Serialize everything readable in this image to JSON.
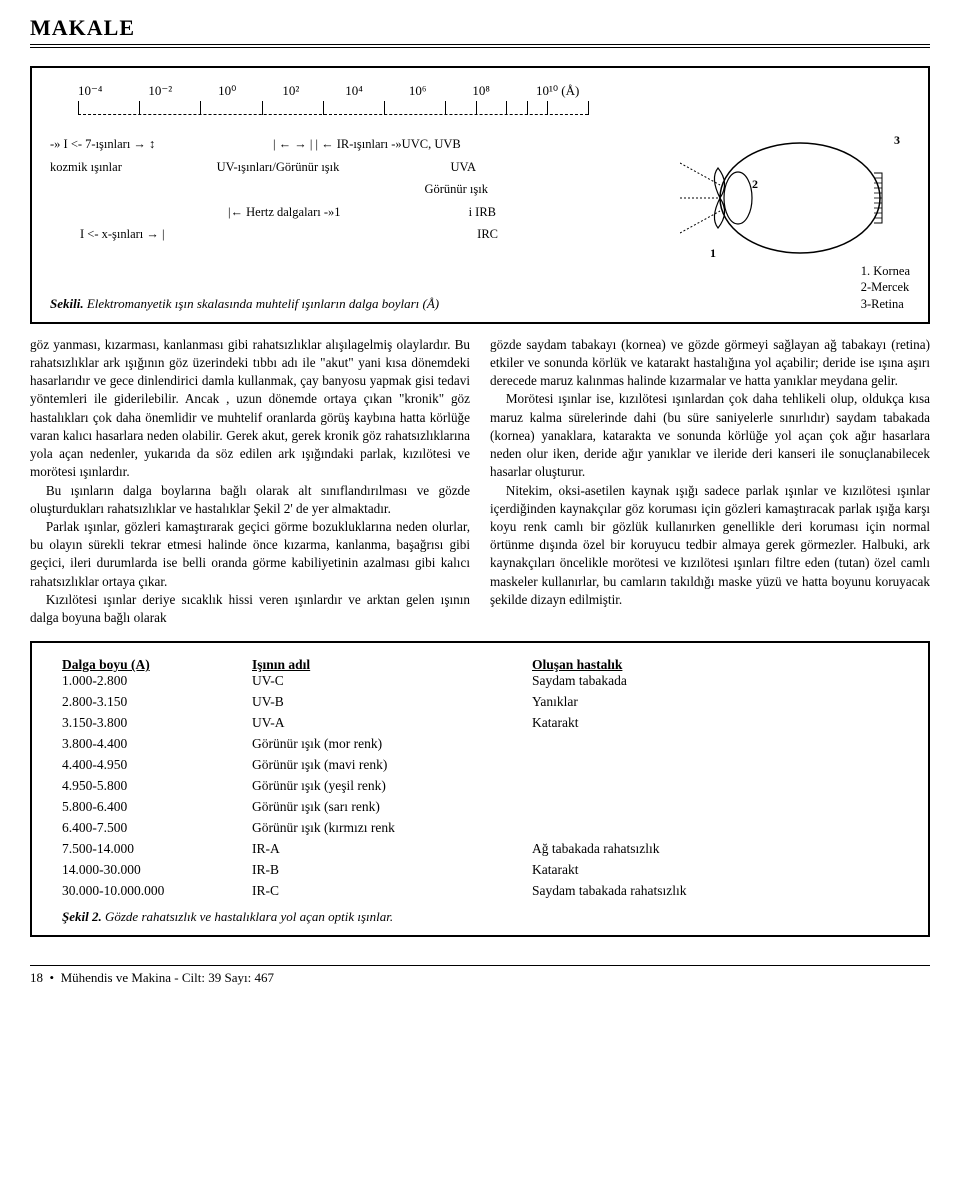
{
  "header": {
    "title": "MAKALE"
  },
  "figure1": {
    "scale_values": [
      "10⁻⁴",
      "10⁻²",
      "10⁰",
      "10²",
      "10⁴",
      "10⁶",
      "10⁸",
      "10¹⁰ (Å)"
    ],
    "tick_positions_pct": [
      0,
      12,
      24,
      36,
      48,
      60,
      72,
      78,
      84,
      88,
      92,
      100
    ],
    "labels": {
      "gamma": "-» I <- 7-ışınları   → ↕",
      "cosmic": "kozmik ışınlar",
      "x_rays": "I <-   x-şınları   → |",
      "uv_vis": "UV-ışınları/Görünür ışık",
      "hertz": "|←  Hertz dalgaları  -»1",
      "ir": "| ←   → |  | ←  IR-ışınları   -»UVC, UVB",
      "uva": "UVA",
      "gorunur": "Görünür ışık",
      "irb": "i   IRB",
      "irc": "IRC"
    },
    "eye_numbers": {
      "n1": "1",
      "n2": "2",
      "n3": "3"
    },
    "eye_legend": {
      "l1": "1. Kornea",
      "l2": "2-Mercek",
      "l3": "3-Retina"
    },
    "caption_label": "Sekili.",
    "caption_text": "Elektromanyetik ışın skalasında muhtelif ışınların dalga boyları (Å)"
  },
  "body": {
    "p1": "göz yanması, kızarması, kanlanması gibi rahatsızlıklar alışılagelmiş olaylardır. Bu rahatsızlıklar ark ışığının göz üzerindeki tıbbı adı ile \"akut\" yani kısa dönemdeki hasarlarıdır ve gece dinlendirici damla kullanmak, çay banyosu yapmak gisi tedavi yöntemleri ile giderilebilir. Ancak , uzun dönemde ortaya çıkan \"kronik\" göz hastalıkları çok daha önemlidir ve muhtelif oranlarda görüş kaybına hatta körlüğe varan kalıcı hasarlara neden olabilir. Gerek akut, gerek kronik göz rahatsızlıklarına yola açan nedenler, yukarıda da söz edilen ark ışığındaki parlak, kızılötesi ve morötesi ışınlardır.",
    "p2": "Bu ışınların dalga boylarına bağlı olarak alt sınıflandırılması ve gözde oluşturdukları rahatsızlıklar ve hastalıklar Şekil 2' de yer almaktadır.",
    "p3": "Parlak ışınlar, gözleri kamaştırarak geçici görme bozukluklarına neden olurlar, bu olayın sürekli tekrar etmesi halinde önce kızarma, kanlanma, başağrısı gibi geçici, ileri durumlarda ise belli oranda görme kabiliyetinin azalması gibi kalıcı rahatsızlıklar ortaya çıkar.",
    "p4": "Kızılötesi ışınlar deriye sıcaklık hissi veren ışınlardır ve arktan gelen ışının dalga boyuna bağlı olarak",
    "p5": "gözde saydam tabakayı (kornea) ve gözde görmeyi sağlayan ağ tabakayı (retina) etkiler ve sonunda körlük ve katarakt hastalığına yol açabilir; deride ise ışına aşırı derecede maruz kalınmas halinde kızarmalar ve hatta yanıklar meydana gelir.",
    "p6": "Morötesi ışınlar ise, kızılötesi ışınlardan çok daha tehlikeli olup, oldukça kısa maruz kalma sürelerinde dahi (bu süre saniyelerle sınırlıdır) saydam tabakada (kornea) yanaklara, katarakta ve sonunda körlüğe yol açan çok ağır hasarlara neden olur iken, deride ağır yanıklar ve ileride deri kanseri ile sonuçlanabilecek hasarlar oluşturur.",
    "p7": "Nitekim, oksi-asetilen kaynak ışığı sadece parlak ışınlar ve kızılötesi ışınlar içerdiğinden kaynakçılar göz koruması için gözleri kamaştıracak parlak ışığa karşı koyu renk camlı bir gözlük kullanırken genellikle deri koruması için normal örtünme dışında özel bir koruyucu tedbir almaya gerek görmezler. Halbuki, ark kaynakçıları öncelikle morötesi ve kızılötesi ışınları filtre eden (tutan) özel camlı maskeler kullanırlar, bu camların takıldığı maske yüzü ve hatta boyunu koruyacak şekilde dizayn edilmiştir."
  },
  "table": {
    "headers": {
      "col1": "Dalga boyu (A)",
      "col2": "Işının adıl",
      "col3": "Oluşan hastalık"
    },
    "rows": [
      {
        "c1": "1.000-2.800",
        "c2": "UV-C",
        "c3": "Saydam tabakada"
      },
      {
        "c1": "2.800-3.150",
        "c2": "UV-B",
        "c3": "Yanıklar"
      },
      {
        "c1": "3.150-3.800",
        "c2": "UV-A",
        "c3": "Katarakt"
      },
      {
        "c1": "3.800-4.400",
        "c2": "Görünür ışık (mor renk)",
        "c3": ""
      },
      {
        "c1": "4.400-4.950",
        "c2": "Görünür ışık (mavi renk)",
        "c3": ""
      },
      {
        "c1": "4.950-5.800",
        "c2": "Görünür ışık (yeşil renk)",
        "c3": ""
      },
      {
        "c1": "5.800-6.400",
        "c2": "Görünür ışık (sarı renk)",
        "c3": ""
      },
      {
        "c1": "6.400-7.500",
        "c2": "Görünür ışık (kırmızı renk",
        "c3": ""
      },
      {
        "c1": "7.500-14.000",
        "c2": "IR-A",
        "c3": "Ağ tabakada rahatsızlık"
      },
      {
        "c1": "14.000-30.000",
        "c2": "IR-B",
        "c3": "Katarakt"
      },
      {
        "c1": "30.000-10.000.000",
        "c2": "IR-C",
        "c3": "Saydam tabakada rahatsızlık"
      }
    ],
    "caption_label": "Şekil 2.",
    "caption_text": "Gözde rahatsızlık ve hastalıklara yol açan optik ışınlar."
  },
  "footer": {
    "page": "18",
    "journal": "Mühendis ve Makina - Cilt: 39 Sayı: 467"
  }
}
